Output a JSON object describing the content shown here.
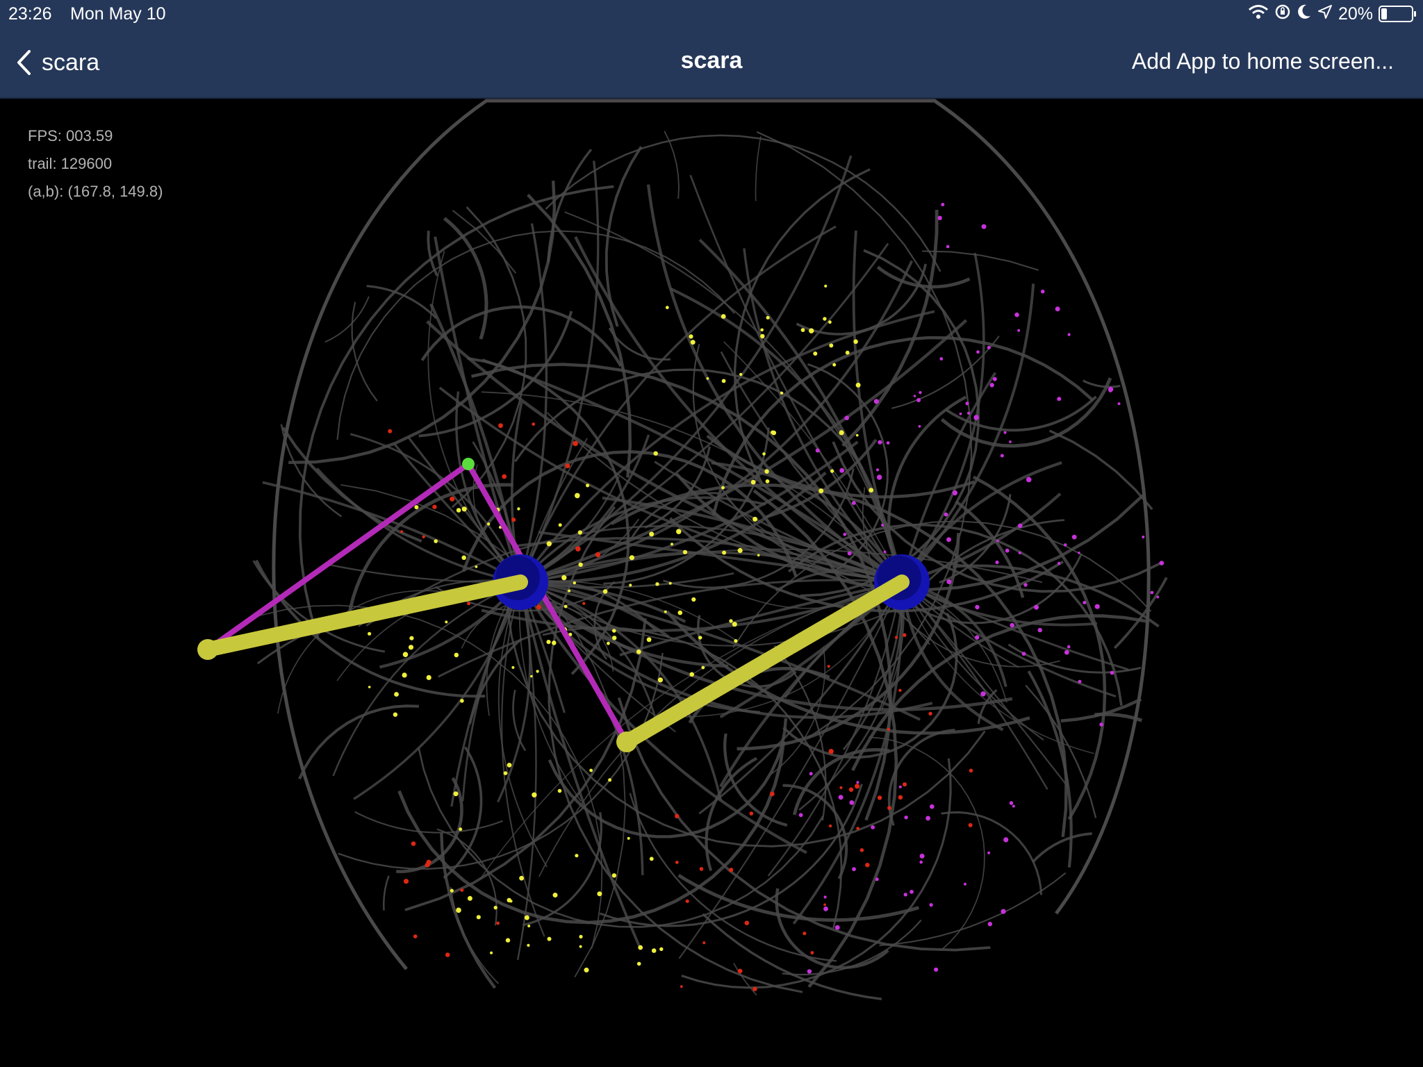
{
  "status_bar": {
    "time": "23:26",
    "date": "Mon May 10",
    "battery_percent": "20%",
    "battery_level": 0.2,
    "icons": [
      "wifi-icon",
      "orientation-lock-icon",
      "moon-icon",
      "location-arrow-icon",
      "battery-icon"
    ]
  },
  "nav": {
    "back_label": "scara",
    "title": "scara",
    "action_label": "Add App to home screen..."
  },
  "hud": {
    "fps": "FPS: 003.59",
    "trail": "trail: 129600",
    "ab": "(a,b): (167.8, 149.8)"
  },
  "colors": {
    "topbar": "#263859",
    "trail": "#4a4a4a",
    "upper_arm": "#c8c83c",
    "forearm": "#b42ab8",
    "base_joint": "#1414b4",
    "effector": "#5adc3c",
    "trail_yellow": "#f0f03c",
    "trail_magenta": "#c832dc",
    "trail_red": "#dc2814"
  }
}
